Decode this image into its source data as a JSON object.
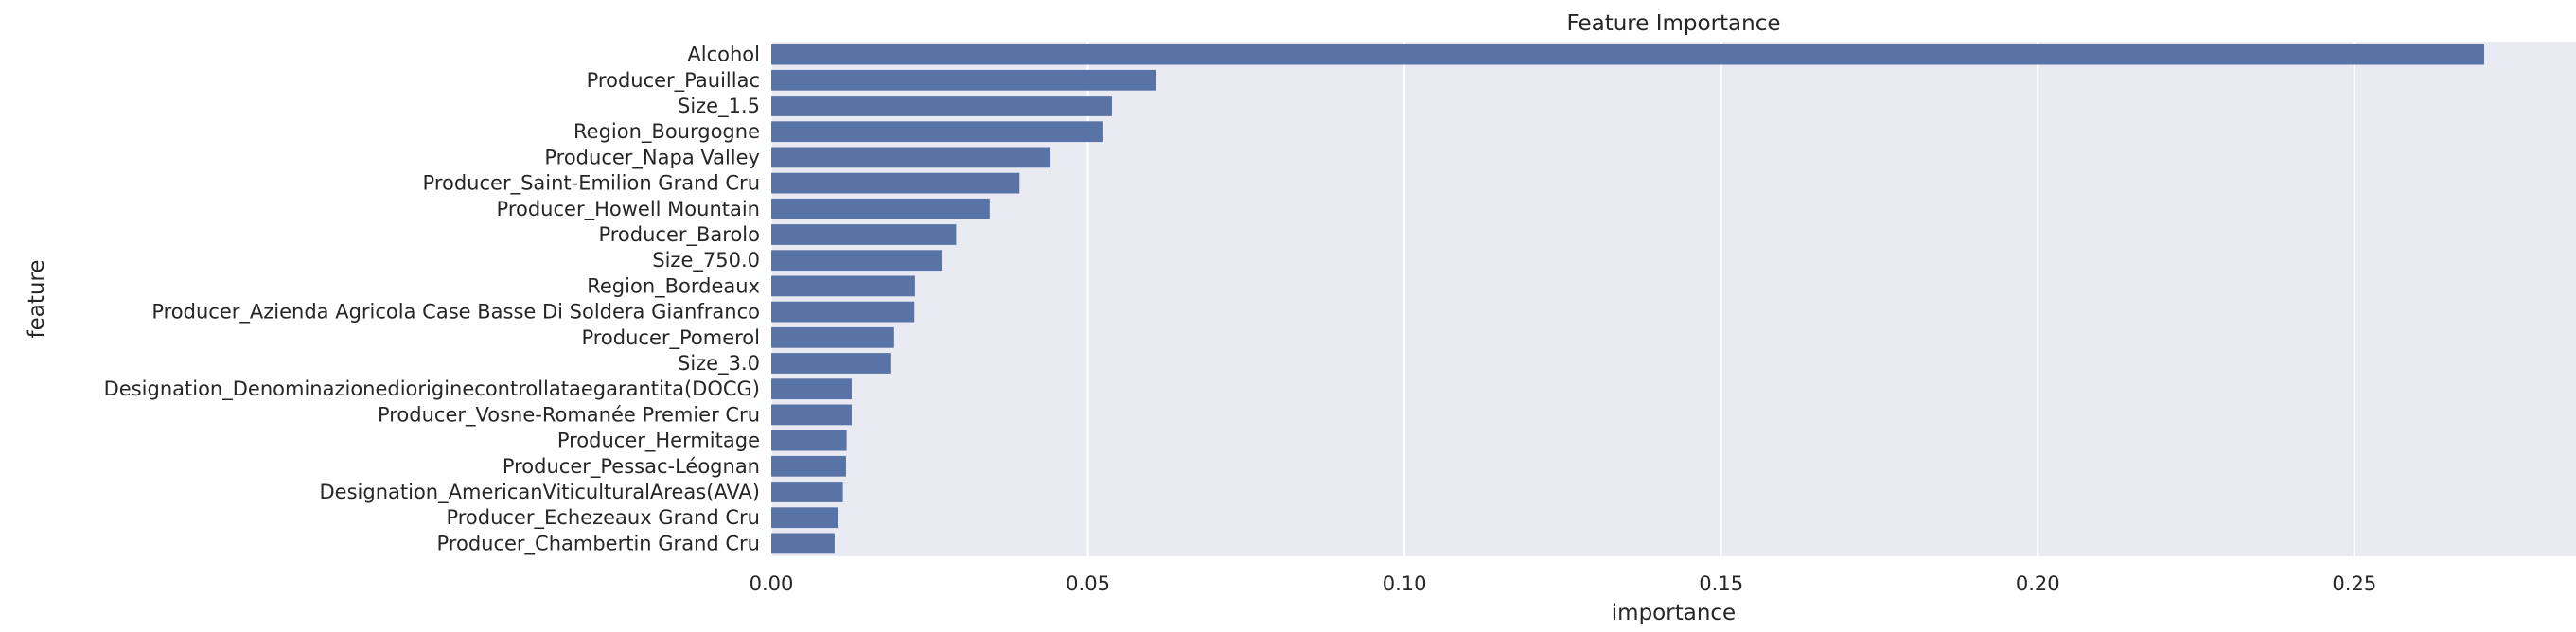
{
  "chart_data": {
    "type": "bar",
    "orientation": "horizontal",
    "title": "Feature Importance",
    "xlabel": "importance",
    "ylabel": "feature",
    "xlim": [
      0,
      0.285
    ],
    "xticks": [
      0.0,
      0.05,
      0.1,
      0.15,
      0.2,
      0.25
    ],
    "xtick_labels": [
      "0.00",
      "0.05",
      "0.10",
      "0.15",
      "0.20",
      "0.25"
    ],
    "grid": true,
    "bar_color": "#5874a7",
    "background_color": "#eaeaf2",
    "categories": [
      "Alcohol",
      "Producer_Pauillac",
      "Size_1.5",
      "Region_Bourgogne",
      "Producer_Napa Valley",
      "Producer_Saint-Emilion Grand Cru",
      "Producer_Howell Mountain",
      "Producer_Barolo",
      "Size_750.0",
      "Region_Bordeaux",
      "Producer_Azienda Agricola Case Basse Di Soldera Gianfranco",
      "Producer_Pomerol",
      "Size_3.0",
      "Designation_Denominazionedioriginecontrollataegarantita(DOCG)",
      "Producer_Vosne-Romanée Premier Cru",
      "Producer_Hermitage",
      "Producer_Pessac-Léognan",
      "Designation_AmericanViticulturalAreas(AVA)",
      "Producer_Echezeaux Grand Cru",
      "Producer_Chambertin Grand Cru"
    ],
    "values": [
      0.2705,
      0.0607,
      0.0538,
      0.0523,
      0.0441,
      0.0392,
      0.0345,
      0.0292,
      0.0269,
      0.0227,
      0.0226,
      0.0194,
      0.0188,
      0.0127,
      0.0127,
      0.0119,
      0.0118,
      0.0113,
      0.0106,
      0.01
    ]
  }
}
